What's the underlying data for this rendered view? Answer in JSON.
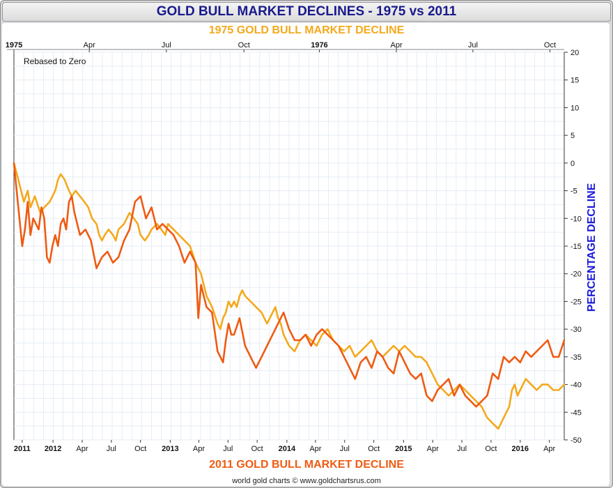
{
  "header": {
    "title": "GOLD BULL MARKET DECLINES - 1975 vs 2011"
  },
  "credit": "world gold charts © www.goldchartsrus.com",
  "chart_data": {
    "type": "line",
    "title": "GOLD BULL MARKET DECLINES - 1975 vs 2011",
    "top_axis_title": "1975 GOLD BULL MARKET DECLINE",
    "bottom_axis_title": "2011 GOLD BULL MARKET DECLINE",
    "ylabel": "PERCENTAGE DECLINE",
    "annotation": "Rebased to Zero",
    "ylim": [
      -50,
      20
    ],
    "yticks": [
      20,
      15,
      10,
      5,
      0,
      -5,
      -10,
      -15,
      -20,
      -25,
      -30,
      -35,
      -40,
      -45,
      -50
    ],
    "xlim": [
      0,
      1
    ],
    "grid": true,
    "top_ticks": [
      {
        "label": "1975",
        "x": 0.0,
        "bold": true
      },
      {
        "label": "Apr",
        "x": 0.137,
        "bold": false
      },
      {
        "label": "Jul",
        "x": 0.277,
        "bold": false
      },
      {
        "label": "Oct",
        "x": 0.418,
        "bold": false
      },
      {
        "label": "1976",
        "x": 0.555,
        "bold": true
      },
      {
        "label": "Apr",
        "x": 0.695,
        "bold": false
      },
      {
        "label": "Jul",
        "x": 0.834,
        "bold": false
      },
      {
        "label": "Oct",
        "x": 0.974,
        "bold": false
      }
    ],
    "bottom_ticks": [
      {
        "label": "2011",
        "x": 0.015,
        "bold": true
      },
      {
        "label": "2012",
        "x": 0.071,
        "bold": true
      },
      {
        "label": "Apr",
        "x": 0.124,
        "bold": false
      },
      {
        "label": "Jul",
        "x": 0.177,
        "bold": false
      },
      {
        "label": "Oct",
        "x": 0.23,
        "bold": false
      },
      {
        "label": "2013",
        "x": 0.284,
        "bold": true
      },
      {
        "label": "Apr",
        "x": 0.336,
        "bold": false
      },
      {
        "label": "Jul",
        "x": 0.389,
        "bold": false
      },
      {
        "label": "Oct",
        "x": 0.442,
        "bold": false
      },
      {
        "label": "2014",
        "x": 0.496,
        "bold": true
      },
      {
        "label": "Apr",
        "x": 0.548,
        "bold": false
      },
      {
        "label": "Jul",
        "x": 0.601,
        "bold": false
      },
      {
        "label": "Oct",
        "x": 0.654,
        "bold": false
      },
      {
        "label": "2015",
        "x": 0.708,
        "bold": true
      },
      {
        "label": "Apr",
        "x": 0.761,
        "bold": false
      },
      {
        "label": "Jul",
        "x": 0.814,
        "bold": false
      },
      {
        "label": "Oct",
        "x": 0.867,
        "bold": false
      },
      {
        "label": "2016",
        "x": 0.92,
        "bold": true
      },
      {
        "label": "Apr",
        "x": 0.973,
        "bold": false
      }
    ],
    "series": [
      {
        "name": "1975 Gold Bull Market Decline",
        "color": "#f4a91c",
        "x": [
          0,
          0.008,
          0.018,
          0.025,
          0.03,
          0.038,
          0.048,
          0.055,
          0.065,
          0.075,
          0.08,
          0.085,
          0.092,
          0.1,
          0.105,
          0.112,
          0.12,
          0.128,
          0.135,
          0.142,
          0.15,
          0.155,
          0.16,
          0.165,
          0.172,
          0.18,
          0.185,
          0.19,
          0.2,
          0.21,
          0.218,
          0.225,
          0.23,
          0.238,
          0.245,
          0.25,
          0.26,
          0.268,
          0.275,
          0.28,
          0.29,
          0.3,
          0.31,
          0.32,
          0.33,
          0.34,
          0.35,
          0.36,
          0.37,
          0.375,
          0.38,
          0.385,
          0.39,
          0.395,
          0.4,
          0.405,
          0.41,
          0.415,
          0.42,
          0.43,
          0.44,
          0.45,
          0.455,
          0.46,
          0.47,
          0.475,
          0.48,
          0.485,
          0.49,
          0.5,
          0.51,
          0.52,
          0.53,
          0.54,
          0.55,
          0.56,
          0.57,
          0.575,
          0.58,
          0.59,
          0.6,
          0.61,
          0.62,
          0.63,
          0.64,
          0.65,
          0.66,
          0.67,
          0.68,
          0.69,
          0.7,
          0.71,
          0.72,
          0.73,
          0.74,
          0.75,
          0.76,
          0.77,
          0.78,
          0.79,
          0.8,
          0.81,
          0.82,
          0.83,
          0.84,
          0.85,
          0.855,
          0.86,
          0.87,
          0.88,
          0.89,
          0.9,
          0.905,
          0.91,
          0.915,
          0.92,
          0.925,
          0.93,
          0.94,
          0.95,
          0.96,
          0.97,
          0.98,
          0.99,
          1.0
        ],
        "values": [
          0,
          -3,
          -7,
          -5,
          -8,
          -6,
          -9,
          -8,
          -7,
          -5,
          -3,
          -2,
          -3,
          -5,
          -6,
          -5,
          -6,
          -7,
          -8,
          -10,
          -11,
          -13,
          -14,
          -13,
          -12,
          -13,
          -14,
          -12,
          -11,
          -9,
          -10,
          -11,
          -13,
          -14,
          -13,
          -12,
          -11,
          -12,
          -13,
          -11,
          -12,
          -13,
          -14,
          -15,
          -18,
          -20,
          -24,
          -26,
          -29,
          -30,
          -28,
          -27,
          -25,
          -26,
          -25,
          -26,
          -24,
          -23,
          -24,
          -25,
          -26,
          -27,
          -28,
          -29,
          -27,
          -26,
          -28,
          -29,
          -31,
          -33,
          -34,
          -32,
          -31,
          -32,
          -33,
          -31,
          -30,
          -31,
          -32,
          -33,
          -34,
          -33,
          -35,
          -34,
          -33,
          -32,
          -34,
          -35,
          -34,
          -33,
          -34,
          -33,
          -34,
          -35,
          -35,
          -36,
          -38,
          -40,
          -41,
          -42,
          -41,
          -40,
          -41,
          -42,
          -43,
          -44,
          -45,
          -46,
          -47,
          -48,
          -46,
          -44,
          -41,
          -40,
          -42,
          -41,
          -40,
          -39,
          -40,
          -41,
          -40,
          -40,
          -41,
          -41,
          -40
        ]
      },
      {
        "name": "2011 Gold Bull Market Decline",
        "color": "#ef5b12",
        "x": [
          0,
          0.005,
          0.01,
          0.015,
          0.02,
          0.025,
          0.03,
          0.035,
          0.04,
          0.045,
          0.05,
          0.055,
          0.06,
          0.065,
          0.07,
          0.075,
          0.08,
          0.085,
          0.09,
          0.095,
          0.1,
          0.105,
          0.11,
          0.115,
          0.12,
          0.13,
          0.14,
          0.15,
          0.16,
          0.17,
          0.18,
          0.19,
          0.2,
          0.21,
          0.22,
          0.23,
          0.24,
          0.25,
          0.26,
          0.27,
          0.28,
          0.29,
          0.3,
          0.31,
          0.32,
          0.33,
          0.335,
          0.34,
          0.345,
          0.35,
          0.36,
          0.37,
          0.38,
          0.385,
          0.39,
          0.395,
          0.4,
          0.41,
          0.42,
          0.43,
          0.44,
          0.45,
          0.46,
          0.47,
          0.48,
          0.49,
          0.5,
          0.51,
          0.52,
          0.53,
          0.54,
          0.55,
          0.56,
          0.57,
          0.58,
          0.59,
          0.6,
          0.61,
          0.62,
          0.63,
          0.64,
          0.65,
          0.66,
          0.67,
          0.68,
          0.69,
          0.7,
          0.71,
          0.72,
          0.73,
          0.74,
          0.75,
          0.76,
          0.77,
          0.78,
          0.79,
          0.8,
          0.81,
          0.82,
          0.83,
          0.84,
          0.85,
          0.86,
          0.87,
          0.88,
          0.89,
          0.9,
          0.91,
          0.92,
          0.93,
          0.94,
          0.95,
          0.96,
          0.97,
          0.98,
          0.99,
          1.0
        ],
        "values": [
          0,
          -5,
          -10,
          -15,
          -12,
          -7,
          -13,
          -10,
          -11,
          -12,
          -8,
          -10,
          -17,
          -18,
          -15,
          -13,
          -15,
          -11,
          -10,
          -12,
          -7,
          -6,
          -9,
          -11,
          -13,
          -12,
          -14,
          -19,
          -17,
          -16,
          -18,
          -17,
          -14,
          -12,
          -7,
          -6,
          -10,
          -8,
          -12,
          -11,
          -12,
          -13,
          -15,
          -18,
          -16,
          -18,
          -28,
          -22,
          -24,
          -26,
          -27,
          -34,
          -36,
          -32,
          -29,
          -31,
          -31,
          -28,
          -33,
          -35,
          -37,
          -35,
          -33,
          -31,
          -29,
          -27,
          -30,
          -32,
          -32,
          -31,
          -33,
          -31,
          -30,
          -31,
          -32,
          -33,
          -35,
          -37,
          -39,
          -36,
          -35,
          -37,
          -34,
          -35,
          -37,
          -38,
          -34,
          -36,
          -38,
          -39,
          -38,
          -42,
          -43,
          -41,
          -40,
          -39,
          -42,
          -40,
          -42,
          -43,
          -44,
          -43,
          -42,
          -38,
          -39,
          -35,
          -36,
          -35,
          -36,
          -34,
          -35,
          -34,
          -33,
          -32,
          -35,
          -35,
          -32
        ]
      }
    ]
  }
}
